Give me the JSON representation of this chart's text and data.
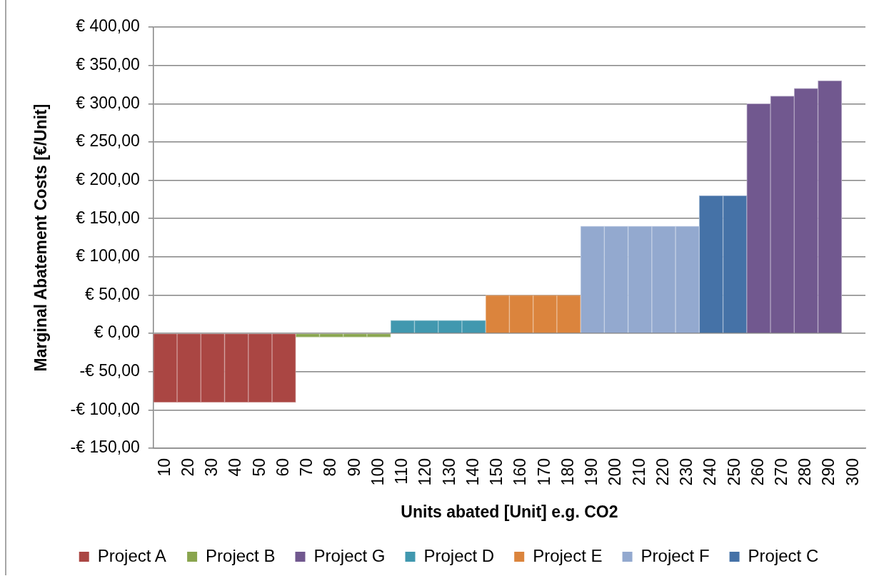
{
  "chart_data": {
    "type": "bar",
    "xlabel": "Units abated [Unit] e.g. CO2",
    "ylabel": "Marginal Abatement Costs [€/Unit]",
    "categories": [
      "10",
      "20",
      "30",
      "40",
      "50",
      "60",
      "70",
      "80",
      "90",
      "100",
      "110",
      "120",
      "130",
      "140",
      "150",
      "160",
      "170",
      "180",
      "190",
      "200",
      "210",
      "220",
      "230",
      "240",
      "250",
      "260",
      "270",
      "280",
      "290",
      "300"
    ],
    "series": [
      {
        "name": "Project A",
        "color": "#aa4643",
        "values": [
          -90,
          -90,
          -90,
          -90,
          -90,
          -90,
          null,
          null,
          null,
          null,
          null,
          null,
          null,
          null,
          null,
          null,
          null,
          null,
          null,
          null,
          null,
          null,
          null,
          null,
          null,
          null,
          null,
          null,
          null,
          null
        ]
      },
      {
        "name": "Project B",
        "color": "#89a54e",
        "values": [
          null,
          null,
          null,
          null,
          null,
          null,
          -5,
          -5,
          -5,
          -5,
          null,
          null,
          null,
          null,
          null,
          null,
          null,
          null,
          null,
          null,
          null,
          null,
          null,
          null,
          null,
          null,
          null,
          null,
          null,
          null
        ]
      },
      {
        "name": "Project G",
        "color": "#71588f",
        "values": [
          null,
          null,
          null,
          null,
          null,
          null,
          null,
          null,
          null,
          null,
          null,
          null,
          null,
          null,
          null,
          null,
          null,
          null,
          null,
          null,
          null,
          null,
          null,
          null,
          null,
          300,
          310,
          320,
          330,
          null
        ]
      },
      {
        "name": "Project D",
        "color": "#4198af",
        "values": [
          null,
          null,
          null,
          null,
          null,
          null,
          null,
          null,
          null,
          null,
          17,
          17,
          17,
          17,
          null,
          null,
          null,
          null,
          null,
          null,
          null,
          null,
          null,
          null,
          null,
          null,
          null,
          null,
          null,
          null
        ]
      },
      {
        "name": "Project E",
        "color": "#db843d",
        "values": [
          null,
          null,
          null,
          null,
          null,
          null,
          null,
          null,
          null,
          null,
          null,
          null,
          null,
          null,
          50,
          50,
          50,
          50,
          null,
          null,
          null,
          null,
          null,
          null,
          null,
          null,
          null,
          null,
          null,
          null
        ]
      },
      {
        "name": "Project F",
        "color": "#93a9cf",
        "values": [
          null,
          null,
          null,
          null,
          null,
          null,
          null,
          null,
          null,
          null,
          null,
          null,
          null,
          null,
          null,
          null,
          null,
          null,
          140,
          140,
          140,
          140,
          140,
          null,
          null,
          null,
          null,
          null,
          null,
          null
        ]
      },
      {
        "name": "Project C",
        "color": "#4572a7",
        "values": [
          null,
          null,
          null,
          null,
          null,
          null,
          null,
          null,
          null,
          null,
          null,
          null,
          null,
          null,
          null,
          null,
          null,
          null,
          null,
          null,
          null,
          null,
          null,
          180,
          180,
          null,
          null,
          null,
          null,
          null
        ]
      }
    ],
    "stacked": true,
    "ylim": [
      -150,
      400
    ],
    "yticks": [
      {
        "value": -150,
        "label": "-€ 150,00"
      },
      {
        "value": -100,
        "label": "-€ 100,00"
      },
      {
        "value": -50,
        "label": "-€ 50,00"
      },
      {
        "value": 0,
        "label": "€ 0,00"
      },
      {
        "value": 50,
        "label": "€ 50,00"
      },
      {
        "value": 100,
        "label": "€ 100,00"
      },
      {
        "value": 150,
        "label": "€ 150,00"
      },
      {
        "value": 200,
        "label": "€ 200,00"
      },
      {
        "value": 250,
        "label": "€ 250,00"
      },
      {
        "value": 300,
        "label": "€ 300,00"
      },
      {
        "value": 350,
        "label": "€ 350,00"
      },
      {
        "value": 400,
        "label": "€ 400,00"
      }
    ],
    "grid": "y",
    "legend": "bottom"
  }
}
